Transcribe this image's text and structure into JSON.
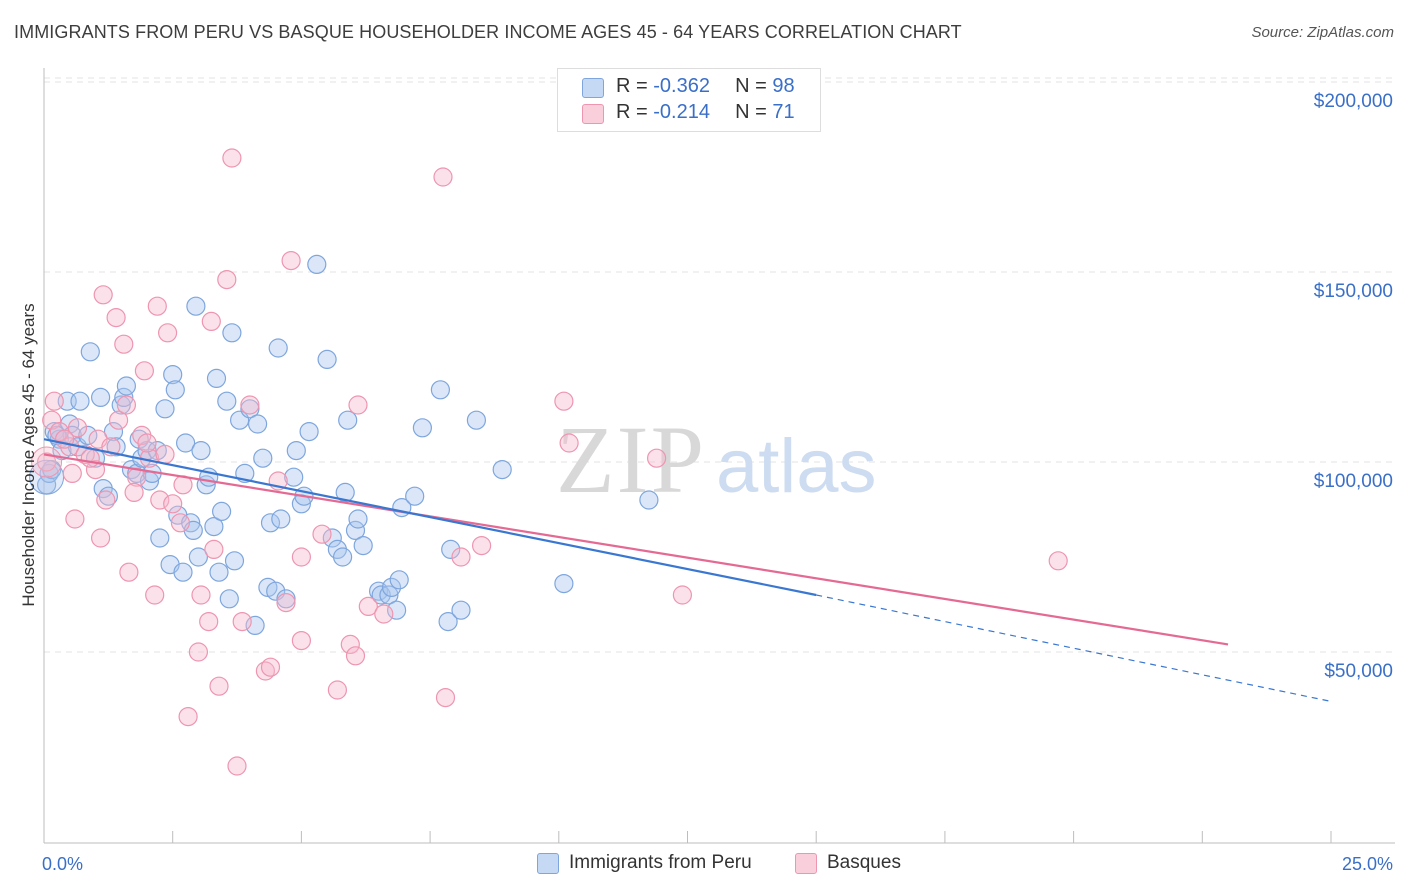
{
  "title": "IMMIGRANTS FROM PERU VS BASQUE HOUSEHOLDER INCOME AGES 45 - 64 YEARS CORRELATION CHART",
  "source": "Source: ZipAtlas.com",
  "watermark": {
    "zip": "ZIP",
    "atlas": "atlas"
  },
  "colors": {
    "blue_fill": "#a9c6ef",
    "blue_stroke": "#7ea6dd",
    "blue_line": "#3a77d0",
    "pink_fill": "#f6b9cc",
    "pink_stroke": "#ee95b0",
    "pink_line": "#e46a93",
    "axis_label": "#3a6fc8",
    "grid": "#e3e3e3"
  },
  "legend": {
    "rows": [
      {
        "r_label": "R = ",
        "r_value": "-0.362",
        "n_label": "N = ",
        "n_value": "98",
        "color": "#a9c6ef",
        "stroke": "#7ea6dd"
      },
      {
        "r_label": "R = ",
        "r_value": "-0.214",
        "n_label": "N = ",
        "n_value": "71",
        "color": "#f6b9cc",
        "stroke": "#ee95b0"
      }
    ]
  },
  "bottom_legend": [
    {
      "label": "Immigrants from Peru",
      "color": "#a9c6ef",
      "stroke": "#7ea6dd"
    },
    {
      "label": "Basques",
      "color": "#f6b9cc",
      "stroke": "#ee95b0"
    }
  ],
  "chart_data": {
    "type": "scatter",
    "title": "IMMIGRANTS FROM PERU VS BASQUE HOUSEHOLDER INCOME AGES 45 - 64 YEARS CORRELATION CHART",
    "xlabel": "",
    "ylabel": "Householder Income Ages 45 - 64 years",
    "xlim": [
      0,
      25
    ],
    "ylim": [
      0,
      205000
    ],
    "x_tick_labels": [
      "0.0%",
      "25.0%"
    ],
    "y_ticks": [
      50000,
      100000,
      150000,
      200000
    ],
    "y_tick_labels": [
      "$50,000",
      "$100,000",
      "$150,000",
      "$200,000"
    ],
    "grid": true,
    "legend_position": "top-center",
    "series": [
      {
        "name": "Immigrants from Peru",
        "color": "#a9c6ef",
        "trend": {
          "x0": 0,
          "y0": 106000,
          "x1": 15,
          "y1": 65000,
          "dash_to_x": 25,
          "dash_to_y": 37000
        },
        "points": [
          [
            0.05,
            94000
          ],
          [
            0.1,
            97000
          ],
          [
            0.15,
            98000
          ],
          [
            0.2,
            108000
          ],
          [
            0.3,
            106000
          ],
          [
            0.35,
            103000
          ],
          [
            0.45,
            116000
          ],
          [
            0.5,
            110000
          ],
          [
            0.55,
            107000
          ],
          [
            0.65,
            104000
          ],
          [
            0.7,
            116000
          ],
          [
            0.85,
            107000
          ],
          [
            0.9,
            129000
          ],
          [
            1.0,
            101000
          ],
          [
            1.1,
            117000
          ],
          [
            1.15,
            93000
          ],
          [
            1.25,
            91000
          ],
          [
            1.35,
            108000
          ],
          [
            1.4,
            104000
          ],
          [
            1.5,
            115000
          ],
          [
            1.55,
            117000
          ],
          [
            1.6,
            120000
          ],
          [
            1.7,
            98000
          ],
          [
            1.8,
            97000
          ],
          [
            1.85,
            106000
          ],
          [
            1.9,
            101000
          ],
          [
            2.0,
            103000
          ],
          [
            2.05,
            95000
          ],
          [
            2.1,
            97000
          ],
          [
            2.2,
            103000
          ],
          [
            2.25,
            80000
          ],
          [
            2.35,
            114000
          ],
          [
            2.45,
            73000
          ],
          [
            2.5,
            123000
          ],
          [
            2.55,
            119000
          ],
          [
            2.6,
            86000
          ],
          [
            2.7,
            71000
          ],
          [
            2.75,
            105000
          ],
          [
            2.85,
            84000
          ],
          [
            2.9,
            82000
          ],
          [
            2.95,
            141000
          ],
          [
            3.0,
            75000
          ],
          [
            3.05,
            103000
          ],
          [
            3.15,
            94000
          ],
          [
            3.2,
            96000
          ],
          [
            3.3,
            83000
          ],
          [
            3.35,
            122000
          ],
          [
            3.4,
            71000
          ],
          [
            3.45,
            87000
          ],
          [
            3.55,
            116000
          ],
          [
            3.6,
            64000
          ],
          [
            3.65,
            134000
          ],
          [
            3.7,
            74000
          ],
          [
            3.8,
            111000
          ],
          [
            3.9,
            97000
          ],
          [
            4.0,
            114000
          ],
          [
            4.1,
            57000
          ],
          [
            4.15,
            110000
          ],
          [
            4.25,
            101000
          ],
          [
            4.35,
            67000
          ],
          [
            4.4,
            84000
          ],
          [
            4.5,
            66000
          ],
          [
            4.55,
            130000
          ],
          [
            4.6,
            85000
          ],
          [
            4.7,
            64000
          ],
          [
            4.85,
            96000
          ],
          [
            4.9,
            103000
          ],
          [
            5.0,
            89000
          ],
          [
            5.05,
            91000
          ],
          [
            5.15,
            108000
          ],
          [
            5.3,
            152000
          ],
          [
            5.5,
            127000
          ],
          [
            5.6,
            80000
          ],
          [
            5.7,
            77000
          ],
          [
            5.8,
            75000
          ],
          [
            5.85,
            92000
          ],
          [
            5.9,
            111000
          ],
          [
            6.05,
            82000
          ],
          [
            6.1,
            85000
          ],
          [
            6.2,
            78000
          ],
          [
            6.5,
            66000
          ],
          [
            6.55,
            65000
          ],
          [
            6.7,
            65000
          ],
          [
            6.75,
            67000
          ],
          [
            6.85,
            61000
          ],
          [
            6.9,
            69000
          ],
          [
            6.95,
            88000
          ],
          [
            7.2,
            91000
          ],
          [
            7.35,
            109000
          ],
          [
            7.7,
            119000
          ],
          [
            7.85,
            58000
          ],
          [
            7.9,
            77000
          ],
          [
            8.1,
            61000
          ],
          [
            8.4,
            111000
          ],
          [
            8.9,
            98000
          ],
          [
            10.1,
            68000
          ],
          [
            11.75,
            90000
          ],
          [
            0.25,
            107000
          ]
        ]
      },
      {
        "name": "Basques",
        "color": "#f6b9cc",
        "trend": {
          "x0": 0,
          "y0": 102000,
          "x1": 23.0,
          "y1": 52000
        },
        "points": [
          [
            0.05,
            100000
          ],
          [
            0.15,
            111000
          ],
          [
            0.2,
            116000
          ],
          [
            0.3,
            108000
          ],
          [
            0.5,
            104000
          ],
          [
            0.6,
            85000
          ],
          [
            0.65,
            109000
          ],
          [
            0.8,
            102000
          ],
          [
            1.0,
            98000
          ],
          [
            1.05,
            106000
          ],
          [
            1.1,
            80000
          ],
          [
            1.15,
            144000
          ],
          [
            1.2,
            90000
          ],
          [
            1.3,
            104000
          ],
          [
            1.4,
            138000
          ],
          [
            1.45,
            111000
          ],
          [
            1.55,
            131000
          ],
          [
            1.6,
            115000
          ],
          [
            1.65,
            71000
          ],
          [
            1.8,
            96000
          ],
          [
            1.9,
            107000
          ],
          [
            1.95,
            124000
          ],
          [
            2.05,
            101000
          ],
          [
            2.15,
            65000
          ],
          [
            2.2,
            141000
          ],
          [
            2.25,
            90000
          ],
          [
            2.35,
            102000
          ],
          [
            2.4,
            134000
          ],
          [
            2.5,
            89000
          ],
          [
            2.65,
            84000
          ],
          [
            2.7,
            94000
          ],
          [
            2.8,
            33000
          ],
          [
            3.05,
            65000
          ],
          [
            3.2,
            58000
          ],
          [
            3.25,
            137000
          ],
          [
            3.3,
            77000
          ],
          [
            3.4,
            41000
          ],
          [
            3.55,
            148000
          ],
          [
            3.65,
            180000
          ],
          [
            3.75,
            20000
          ],
          [
            3.85,
            58000
          ],
          [
            4.0,
            115000
          ],
          [
            4.3,
            45000
          ],
          [
            4.4,
            46000
          ],
          [
            4.55,
            95000
          ],
          [
            4.7,
            63000
          ],
          [
            4.8,
            153000
          ],
          [
            5.0,
            53000
          ],
          [
            5.0,
            75000
          ],
          [
            5.4,
            81000
          ],
          [
            5.7,
            40000
          ],
          [
            5.95,
            52000
          ],
          [
            6.05,
            49000
          ],
          [
            6.1,
            115000
          ],
          [
            6.3,
            62000
          ],
          [
            6.6,
            60000
          ],
          [
            7.75,
            175000
          ],
          [
            7.8,
            38000
          ],
          [
            8.1,
            75000
          ],
          [
            8.5,
            78000
          ],
          [
            10.1,
            116000
          ],
          [
            10.2,
            105000
          ],
          [
            11.9,
            101000
          ],
          [
            12.4,
            65000
          ],
          [
            19.7,
            74000
          ],
          [
            0.4,
            106000
          ],
          [
            0.55,
            97000
          ],
          [
            0.9,
            101000
          ],
          [
            2.0,
            105000
          ],
          [
            1.75,
            92000
          ],
          [
            3.0,
            50000
          ]
        ]
      }
    ]
  }
}
